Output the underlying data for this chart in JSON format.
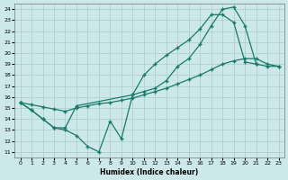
{
  "xlabel": "Humidex (Indice chaleur)",
  "bg_color": "#cce8e8",
  "grid_color": "#aacccc",
  "line_color": "#1a7a6a",
  "xlim": [
    -0.5,
    23.5
  ],
  "ylim": [
    10.5,
    24.5
  ],
  "xticks": [
    0,
    1,
    2,
    3,
    4,
    5,
    6,
    7,
    8,
    9,
    10,
    11,
    12,
    13,
    14,
    15,
    16,
    17,
    18,
    19,
    20,
    21,
    22,
    23
  ],
  "yticks": [
    11,
    12,
    13,
    14,
    15,
    16,
    17,
    18,
    19,
    20,
    21,
    22,
    23,
    24
  ],
  "line1_x": [
    0,
    1,
    2,
    3,
    4,
    5,
    6,
    7,
    8,
    9,
    10,
    11,
    12,
    13,
    14,
    15,
    16,
    17,
    18,
    19,
    20,
    21
  ],
  "line1_y": [
    15.5,
    14.8,
    14.0,
    13.2,
    13.0,
    12.5,
    11.5,
    11.0,
    13.8,
    12.2,
    16.2,
    18.0,
    19.0,
    19.8,
    20.5,
    21.2,
    22.2,
    23.5,
    23.5,
    22.8,
    19.2,
    19.0
  ],
  "line2_x": [
    0,
    1,
    2,
    3,
    4,
    5,
    10,
    11,
    12,
    13,
    14,
    15,
    16,
    17,
    18,
    19,
    20,
    21,
    22,
    23
  ],
  "line2_y": [
    15.5,
    14.8,
    14.0,
    13.2,
    13.2,
    15.2,
    16.2,
    16.5,
    16.8,
    17.5,
    18.8,
    19.5,
    20.8,
    22.5,
    24.0,
    24.2,
    22.5,
    19.0,
    18.8,
    18.8
  ],
  "line3_x": [
    0,
    1,
    2,
    3,
    4,
    5,
    6,
    7,
    8,
    9,
    10,
    11,
    12,
    13,
    14,
    15,
    16,
    17,
    18,
    19,
    20,
    21,
    22,
    23
  ],
  "line3_y": [
    15.5,
    15.3,
    15.1,
    14.9,
    14.7,
    15.0,
    15.2,
    15.4,
    15.5,
    15.7,
    15.9,
    16.2,
    16.5,
    16.8,
    17.2,
    17.6,
    18.0,
    18.5,
    19.0,
    19.3,
    19.5,
    19.5,
    19.0,
    18.8
  ]
}
